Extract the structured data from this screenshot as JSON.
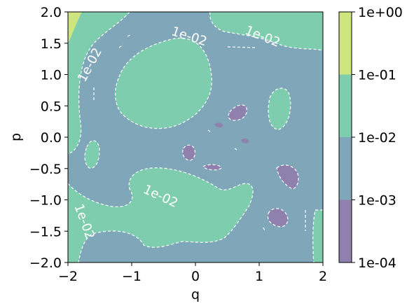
{
  "chart_data": {
    "type": "contourf",
    "title": "",
    "xlabel": "q",
    "ylabel": "p",
    "xlim": [
      -2,
      2
    ],
    "ylim": [
      -2,
      2
    ],
    "x_ticks": [
      {
        "value": -2,
        "label": "−2"
      },
      {
        "value": -1,
        "label": "−1"
      },
      {
        "value": 0,
        "label": "0"
      },
      {
        "value": 1,
        "label": "1"
      },
      {
        "value": 2,
        "label": "2"
      }
    ],
    "y_ticks": [
      {
        "value": 2.0,
        "label": "2.0"
      },
      {
        "value": 1.5,
        "label": "1.5"
      },
      {
        "value": 1.0,
        "label": "1.0"
      },
      {
        "value": 0.5,
        "label": "0.5"
      },
      {
        "value": 0.0,
        "label": "0.0"
      },
      {
        "value": -0.5,
        "label": "−0.5"
      },
      {
        "value": -1.0,
        "label": "−1.0"
      },
      {
        "value": -1.5,
        "label": "−1.5"
      },
      {
        "value": -2.0,
        "label": "−2.0"
      }
    ],
    "scale": "log",
    "colorbar": {
      "levels": [
        {
          "value": 0.0001,
          "label": "1e-04"
        },
        {
          "value": 0.001,
          "label": "1e-03"
        },
        {
          "value": 0.01,
          "label": "1e-02"
        },
        {
          "value": 0.1,
          "label": "1e-01"
        },
        {
          "value": 1,
          "label": "1e+00"
        }
      ],
      "band_colors": [
        "#8f80ad",
        "#80a7b9",
        "#7fcdaf",
        "#cfe57f"
      ]
    },
    "contour_line": {
      "level": 0.01,
      "style": "dashed",
      "color": "#ffffff"
    },
    "contour_labels": [
      {
        "text": "1e-02",
        "x": -0.1,
        "y": 1.6,
        "angle": 18
      },
      {
        "text": "1e-02",
        "x": 1.05,
        "y": 1.6,
        "angle": 22
      },
      {
        "text": "1e-02",
        "x": -1.65,
        "y": 1.15,
        "angle": -62
      },
      {
        "text": "1e-02",
        "x": -0.55,
        "y": -0.95,
        "angle": 25
      },
      {
        "text": "1e-02",
        "x": -1.75,
        "y": -1.35,
        "angle": 70
      }
    ]
  }
}
